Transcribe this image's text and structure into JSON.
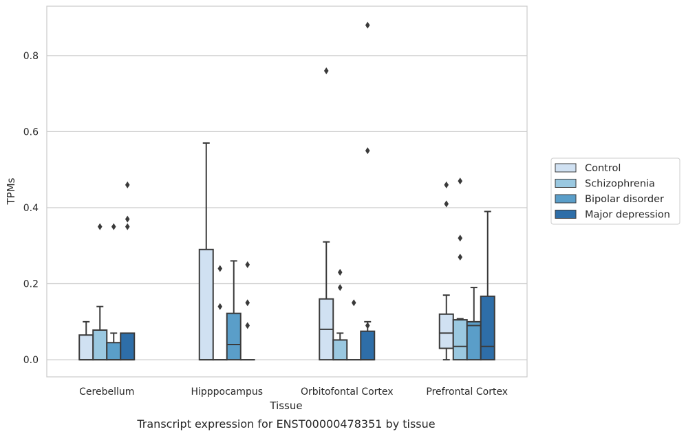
{
  "chart_data": {
    "type": "box",
    "title": "Transcript expression for ENST00000478351 by tissue",
    "xlabel": "Tissue",
    "ylabel": "TPMs",
    "ylim": [
      -0.045,
      0.93
    ],
    "yticks": [
      0.0,
      0.2,
      0.4,
      0.6,
      0.8
    ],
    "ytick_labels": [
      "0.0",
      "0.2",
      "0.4",
      "0.6",
      "0.8"
    ],
    "grid": true,
    "legend_position": "outside-right",
    "categories": [
      "Cerebellum",
      "Hipppocampus",
      "Orbitofontal Cortex",
      "Prefrontal Cortex"
    ],
    "series": [
      {
        "name": "Control",
        "color": "#d0e1f2",
        "boxes": [
          {
            "q1": 0.0,
            "median": 0.0,
            "q3": 0.065,
            "whisker_low": 0.0,
            "whisker_high": 0.1,
            "outliers": []
          },
          {
            "q1": 0.0,
            "median": 0.0,
            "q3": 0.29,
            "whisker_low": 0.0,
            "whisker_high": 0.57,
            "outliers": []
          },
          {
            "q1": 0.0,
            "median": 0.08,
            "q3": 0.16,
            "whisker_low": 0.0,
            "whisker_high": 0.31,
            "outliers": [
              0.76
            ]
          },
          {
            "q1": 0.03,
            "median": 0.07,
            "q3": 0.12,
            "whisker_low": 0.0,
            "whisker_high": 0.17,
            "outliers": [
              0.41,
              0.46
            ]
          }
        ]
      },
      {
        "name": "Schizophrenia",
        "color": "#9ac8e0",
        "boxes": [
          {
            "q1": 0.0,
            "median": 0.0,
            "q3": 0.078,
            "whisker_low": 0.0,
            "whisker_high": 0.14,
            "outliers": [
              0.35
            ]
          },
          {
            "q1": 0.0,
            "median": 0.0,
            "q3": 0.0,
            "whisker_low": 0.0,
            "whisker_high": 0.0,
            "outliers": [
              0.14,
              0.24
            ]
          },
          {
            "q1": 0.0,
            "median": 0.0,
            "q3": 0.052,
            "whisker_low": 0.0,
            "whisker_high": 0.07,
            "outliers": [
              0.19,
              0.23
            ]
          },
          {
            "q1": 0.0,
            "median": 0.035,
            "q3": 0.105,
            "whisker_low": 0.0,
            "whisker_high": 0.108,
            "outliers": [
              0.27,
              0.32,
              0.47
            ]
          }
        ]
      },
      {
        "name": "Bipolar disorder",
        "color": "#5a9ec9",
        "boxes": [
          {
            "q1": 0.0,
            "median": 0.0,
            "q3": 0.045,
            "whisker_low": 0.0,
            "whisker_high": 0.07,
            "outliers": [
              0.35
            ]
          },
          {
            "q1": 0.0,
            "median": 0.04,
            "q3": 0.122,
            "whisker_low": 0.0,
            "whisker_high": 0.26,
            "outliers": []
          },
          {
            "q1": 0.0,
            "median": 0.0,
            "q3": 0.0,
            "whisker_low": 0.0,
            "whisker_high": 0.0,
            "outliers": [
              0.15
            ]
          },
          {
            "q1": 0.0,
            "median": 0.09,
            "q3": 0.1,
            "whisker_low": 0.0,
            "whisker_high": 0.19,
            "outliers": []
          }
        ]
      },
      {
        "name": "Major depression",
        "color": "#2e6ea8",
        "boxes": [
          {
            "q1": 0.0,
            "median": 0.0,
            "q3": 0.07,
            "whisker_low": 0.0,
            "whisker_high": 0.07,
            "outliers": [
              0.35,
              0.37,
              0.46
            ]
          },
          {
            "q1": 0.0,
            "median": 0.0,
            "q3": 0.0,
            "whisker_low": 0.0,
            "whisker_high": 0.0,
            "outliers": [
              0.09,
              0.15,
              0.25
            ]
          },
          {
            "q1": 0.0,
            "median": 0.0,
            "q3": 0.075,
            "whisker_low": 0.0,
            "whisker_high": 0.1,
            "outliers": [
              0.09,
              0.55,
              0.88
            ]
          },
          {
            "q1": 0.0,
            "median": 0.035,
            "q3": 0.167,
            "whisker_low": 0.0,
            "whisker_high": 0.39,
            "outliers": []
          }
        ]
      }
    ]
  }
}
